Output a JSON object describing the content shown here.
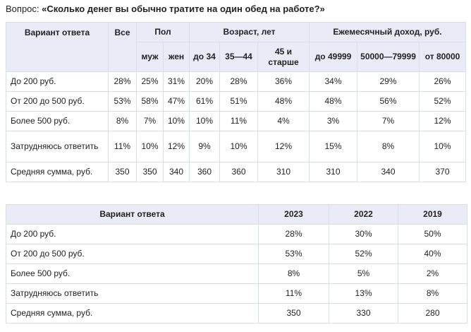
{
  "question": {
    "prefix": "Вопрос:",
    "text": "«Сколько денег вы обычно тратите на один обед на работе?»"
  },
  "table1": {
    "headers": {
      "variant": "Вариант ответа",
      "all": "Все",
      "gender": "Пол",
      "age": "Возраст, лет",
      "income": "Ежемесячный доход, руб.",
      "male": "муж",
      "female": "жен",
      "age1": "до 34",
      "age2": "35—44",
      "age3": "45 и старше",
      "inc1": "до 49999",
      "inc2": "50000—79999",
      "inc3": "от 80000"
    },
    "rows": [
      {
        "label": "До 200 руб.",
        "values": [
          "28%",
          "25%",
          "31%",
          "20%",
          "28%",
          "36%",
          "34%",
          "29%",
          "26%"
        ]
      },
      {
        "label": "От 200 до 500 руб.",
        "values": [
          "53%",
          "58%",
          "47%",
          "61%",
          "51%",
          "48%",
          "48%",
          "56%",
          "52%"
        ]
      },
      {
        "label": "Более 500 руб.",
        "values": [
          "8%",
          "7%",
          "10%",
          "10%",
          "11%",
          "4%",
          "3%",
          "7%",
          "12%"
        ]
      },
      {
        "label": "Затрудняюсь ответить",
        "values": [
          "11%",
          "10%",
          "12%",
          "9%",
          "10%",
          "12%",
          "15%",
          "8%",
          "10%"
        ]
      },
      {
        "label": "Средняя сумма, руб.",
        "values": [
          "350",
          "350",
          "340",
          "360",
          "360",
          "310",
          "310",
          "340",
          "370"
        ]
      }
    ]
  },
  "table2": {
    "headers": {
      "variant": "Вариант ответа",
      "y1": "2023",
      "y2": "2022",
      "y3": "2019"
    },
    "rows": [
      {
        "label": "До 200 руб.",
        "values": [
          "28%",
          "30%",
          "50%"
        ]
      },
      {
        "label": "От 200 до 500 руб.",
        "values": [
          "53%",
          "52%",
          "40%"
        ]
      },
      {
        "label": "Более 500 руб.",
        "values": [
          "8%",
          "5%",
          "2%"
        ]
      },
      {
        "label": "Затрудняюсь ответить",
        "values": [
          "11%",
          "13%",
          "8%"
        ]
      },
      {
        "label": "Средняя сумма, руб.",
        "values": [
          "350",
          "330",
          "280"
        ]
      }
    ]
  }
}
